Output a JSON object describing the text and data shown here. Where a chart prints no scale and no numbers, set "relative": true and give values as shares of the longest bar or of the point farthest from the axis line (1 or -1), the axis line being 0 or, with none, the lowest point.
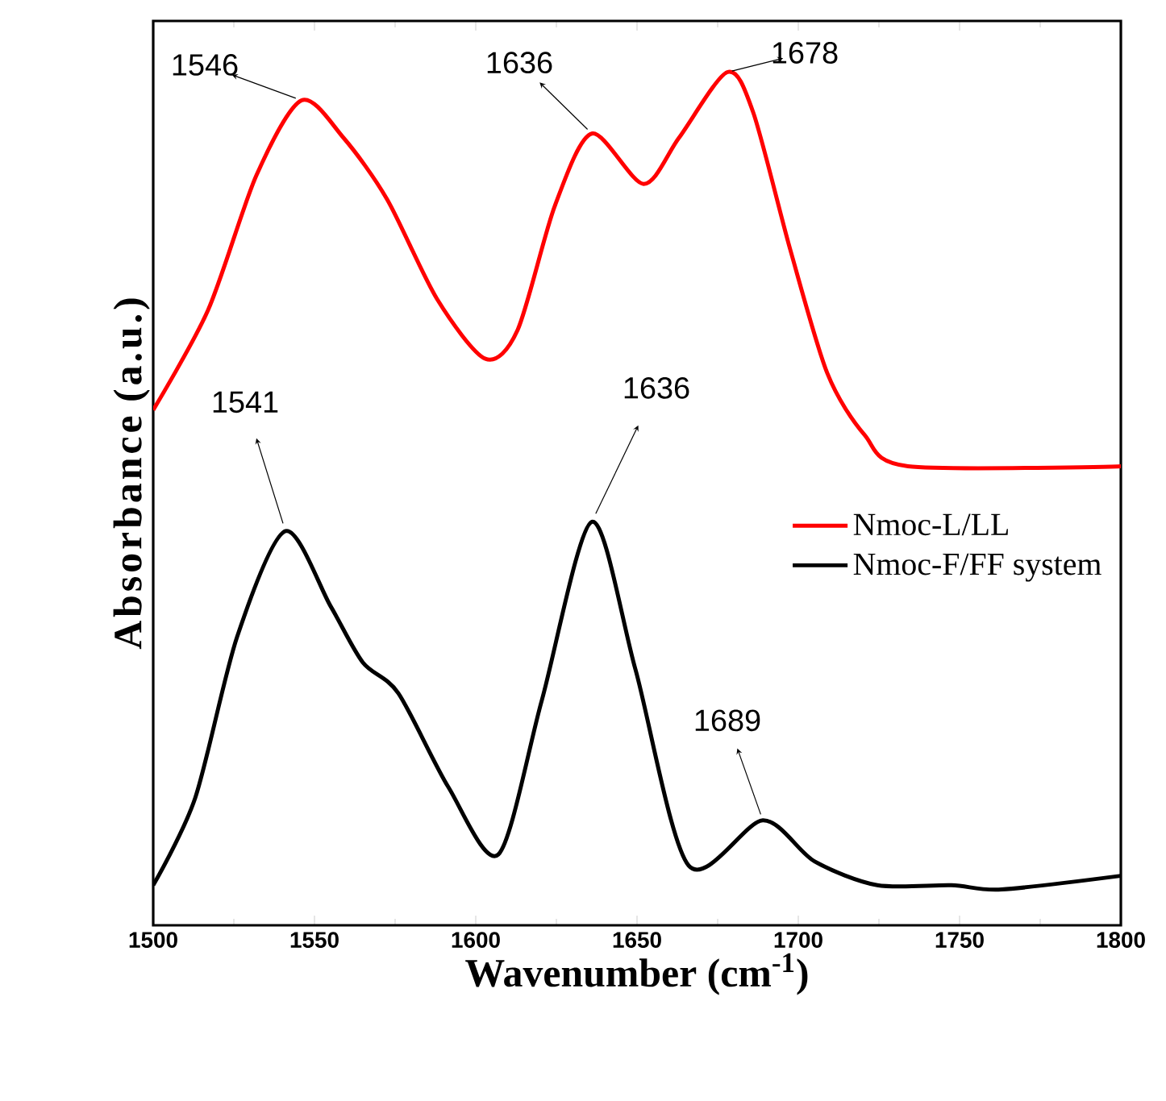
{
  "chart_data": {
    "type": "line",
    "relative": true,
    "xlabel": "Wavenumber (cm$^{-1}$)",
    "ylabel": "Absorbance (a.u.)",
    "xlim": [
      1500,
      1800
    ],
    "xticks": [
      1500,
      1550,
      1600,
      1650,
      1700,
      1750,
      1800
    ],
    "legend": "right",
    "marker": "none",
    "line_style": "solid",
    "series": [
      {
        "name": "Nmoc-L/LL",
        "color": "#ff0000",
        "x": [
          1500,
          1517,
          1532,
          1546,
          1559,
          1572.5,
          1588,
          1603,
          1613,
          1624.5,
          1636,
          1652,
          1663,
          1678,
          1686,
          1697.5,
          1709,
          1720.5,
          1734,
          1800
        ],
        "values": [
          0.604,
          0.721,
          0.879,
          0.967,
          0.923,
          0.851,
          0.734,
          0.664,
          0.698,
          0.843,
          0.928,
          0.869,
          0.923,
          1.0,
          0.953,
          0.792,
          0.647,
          0.575,
          0.538,
          0.538
        ]
      },
      {
        "name": "Nmoc-F/FF system",
        "color": "#000000",
        "x": [
          1500,
          1513,
          1526,
          1541,
          1555,
          1565,
          1576,
          1591.5,
          1607,
          1620.5,
          1636,
          1649.5,
          1666,
          1689,
          1705,
          1724.5,
          1747.5,
          1763,
          1800
        ],
        "values": [
          0.047,
          0.149,
          0.338,
          0.462,
          0.374,
          0.308,
          0.272,
          0.162,
          0.083,
          0.264,
          0.473,
          0.3,
          0.07,
          0.123,
          0.075,
          0.047,
          0.047,
          0.042,
          0.058
        ]
      }
    ],
    "annotations": [
      {
        "text": "1546",
        "x": 1546,
        "y": 0.967
      },
      {
        "text": "1636",
        "x": 1636,
        "y": 0.928
      },
      {
        "text": "1678",
        "x": 1678,
        "y": 1.0
      },
      {
        "text": "1541",
        "x": 1541,
        "y": 0.462
      },
      {
        "text": "1636",
        "x": 1636,
        "y": 0.473
      },
      {
        "text": "1689",
        "x": 1689,
        "y": 0.123
      }
    ]
  }
}
